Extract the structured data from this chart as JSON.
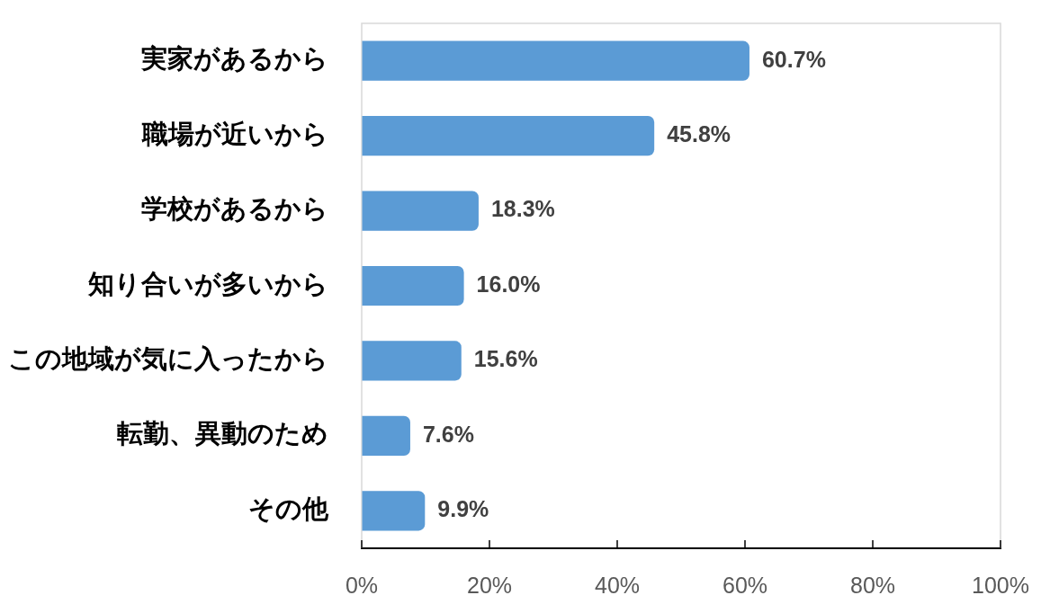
{
  "chart_data": {
    "type": "bar",
    "orientation": "horizontal",
    "categories": [
      "実家があるから",
      "職場が近いから",
      "学校があるから",
      "知り合いが多いから",
      "この地域が気に入ったから",
      "転勤、異動のため",
      "その他"
    ],
    "values": [
      60.7,
      45.8,
      18.3,
      16.0,
      15.6,
      7.6,
      9.9
    ],
    "value_labels": [
      "60.7%",
      "45.8%",
      "18.3%",
      "16.0%",
      "15.6%",
      "7.6%",
      "9.9%"
    ],
    "color": "#5b9bd5",
    "xlim": [
      0,
      100
    ],
    "xticks": [
      {
        "value": 0,
        "label": "0%"
      },
      {
        "value": 20,
        "label": "20%"
      },
      {
        "value": 40,
        "label": "40%"
      },
      {
        "value": 60,
        "label": "60%"
      },
      {
        "value": 80,
        "label": "80%"
      },
      {
        "value": 100,
        "label": "100%"
      }
    ]
  }
}
